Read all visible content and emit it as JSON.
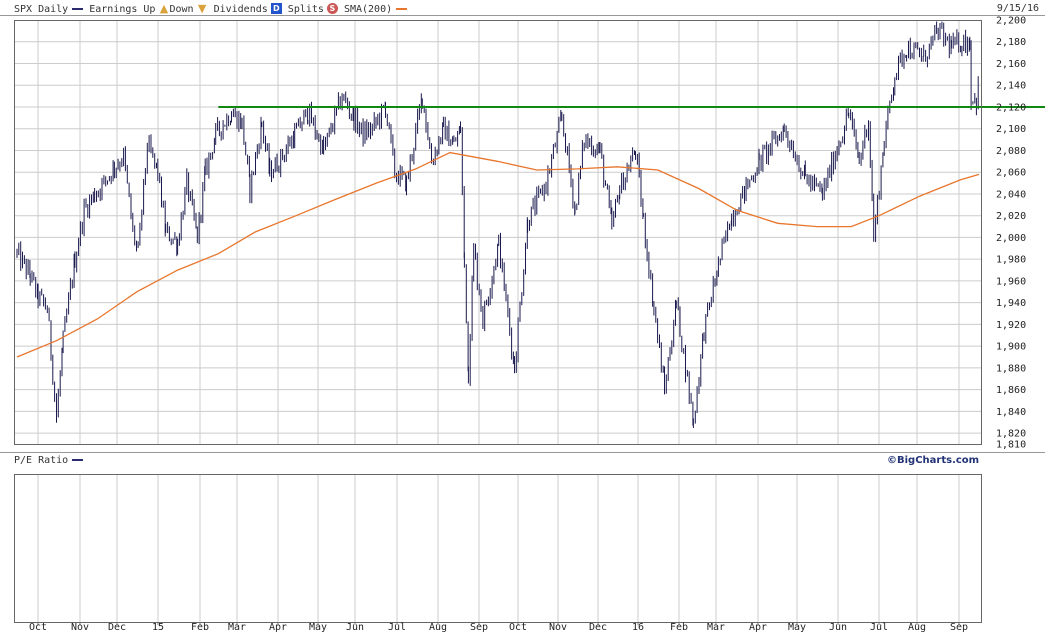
{
  "header": {
    "symbol_label": "SPX Daily",
    "earnings_label": "Earnings Up",
    "down_label": "Down",
    "dividends_label": "Dividends",
    "splits_label": "Splits",
    "sma_label": "SMA(200)",
    "date": "9/15/16",
    "earnings_icon": "warning-triangle-icon",
    "down_icon": "down-triangle-icon",
    "dividend_icon": "d-square-icon",
    "split_icon": "s-circle-icon"
  },
  "lower_panel": {
    "label": "P/E Ratio",
    "credit": "©BigCharts.com"
  },
  "colors": {
    "price": "#1a1a4e",
    "sma": "#e8762c",
    "support": "#118811",
    "grid": "#cccccc",
    "earnings_icon": "#d9a23a",
    "dividend_icon": "#2255cc",
    "split_icon": "#cc5555"
  },
  "chart_data": [
    {
      "type": "line",
      "title": "SPX Daily",
      "x_tick_labels": [
        "Oct",
        "Nov",
        "Dec",
        "15",
        "Feb",
        "Mar",
        "Apr",
        "May",
        "Jun",
        "Jul",
        "Aug",
        "Sep",
        "Oct",
        "Nov",
        "Dec",
        "16",
        "Feb",
        "Mar",
        "Apr",
        "May",
        "Jun",
        "Jul",
        "Aug",
        "Sep"
      ],
      "y_tick_labels": [
        "2,200",
        "2,180",
        "2,160",
        "2,140",
        "2,120",
        "2,100",
        "2,080",
        "2,060",
        "2,040",
        "2,020",
        "2,000",
        "1,980",
        "1,960",
        "1,940",
        "1,920",
        "1,900",
        "1,880",
        "1,860",
        "1,840",
        "1,820",
        "1,810"
      ],
      "ylim": [
        1810,
        2200
      ],
      "y_axis_side": "right",
      "grid": true,
      "x_range": [
        "2014-09-15",
        "2016-09-15"
      ],
      "series": [
        {
          "name": "SPX Daily",
          "style": "ohlc-bars",
          "points": [
            [
              "2014-09-15",
              1985
            ],
            [
              "2014-09-25",
              1965
            ],
            [
              "2014-10-01",
              1945
            ],
            [
              "2014-10-08",
              1935
            ],
            [
              "2014-10-15",
              1835
            ],
            [
              "2014-10-20",
              1905
            ],
            [
              "2014-10-29",
              1980
            ],
            [
              "2014-11-05",
              2025
            ],
            [
              "2014-11-13",
              2040
            ],
            [
              "2014-11-20",
              2050
            ],
            [
              "2014-11-28",
              2065
            ],
            [
              "2014-12-05",
              2075
            ],
            [
              "2014-12-12",
              2005
            ],
            [
              "2014-12-16",
              1985
            ],
            [
              "2014-12-23",
              2085
            ],
            [
              "2014-12-31",
              2060
            ],
            [
              "2015-01-06",
              2005
            ],
            [
              "2015-01-15",
              1995
            ],
            [
              "2015-01-22",
              2050
            ],
            [
              "2015-01-30",
              2000
            ],
            [
              "2015-02-05",
              2060
            ],
            [
              "2015-02-13",
              2095
            ],
            [
              "2015-02-25",
              2115
            ],
            [
              "2015-03-05",
              2105
            ],
            [
              "2015-03-11",
              2045
            ],
            [
              "2015-03-20",
              2105
            ],
            [
              "2015-03-26",
              2060
            ],
            [
              "2015-04-02",
              2070
            ],
            [
              "2015-04-14",
              2095
            ],
            [
              "2015-04-24",
              2115
            ],
            [
              "2015-05-06",
              2080
            ],
            [
              "2015-05-20",
              2130
            ],
            [
              "2015-05-29",
              2110
            ],
            [
              "2015-06-05",
              2095
            ],
            [
              "2015-06-12",
              2100
            ],
            [
              "2015-06-22",
              2120
            ],
            [
              "2015-06-29",
              2060
            ],
            [
              "2015-07-08",
              2050
            ],
            [
              "2015-07-20",
              2130
            ],
            [
              "2015-07-27",
              2070
            ],
            [
              "2015-08-05",
              2100
            ],
            [
              "2015-08-13",
              2085
            ],
            [
              "2015-08-18",
              2100
            ],
            [
              "2015-08-21",
              1975
            ],
            [
              "2015-08-24",
              1875
            ],
            [
              "2015-08-28",
              1990
            ],
            [
              "2015-09-04",
              1925
            ],
            [
              "2015-09-16",
              1995
            ],
            [
              "2015-09-28",
              1880
            ],
            [
              "2015-10-08",
              2015
            ],
            [
              "2015-10-22",
              2050
            ],
            [
              "2015-11-03",
              2110
            ],
            [
              "2015-11-13",
              2025
            ],
            [
              "2015-11-20",
              2090
            ],
            [
              "2015-12-02",
              2080
            ],
            [
              "2015-12-11",
              2010
            ],
            [
              "2015-12-17",
              2045
            ],
            [
              "2015-12-29",
              2080
            ],
            [
              "2016-01-04",
              2015
            ],
            [
              "2016-01-12",
              1935
            ],
            [
              "2016-01-20",
              1860
            ],
            [
              "2016-01-29",
              1940
            ],
            [
              "2016-02-11",
              1830
            ],
            [
              "2016-02-19",
              1915
            ],
            [
              "2016-03-01",
              1975
            ],
            [
              "2016-03-11",
              2020
            ],
            [
              "2016-03-22",
              2045
            ],
            [
              "2016-04-01",
              2070
            ],
            [
              "2016-04-20",
              2100
            ],
            [
              "2016-05-06",
              2055
            ],
            [
              "2016-05-19",
              2040
            ],
            [
              "2016-06-08",
              2115
            ],
            [
              "2016-06-16",
              2070
            ],
            [
              "2016-06-23",
              2110
            ],
            [
              "2016-06-27",
              2000
            ],
            [
              "2016-07-05",
              2090
            ],
            [
              "2016-07-13",
              2150
            ],
            [
              "2016-07-22",
              2175
            ],
            [
              "2016-08-04",
              2165
            ],
            [
              "2016-08-15",
              2190
            ],
            [
              "2016-08-25",
              2175
            ],
            [
              "2016-09-02",
              2180
            ],
            [
              "2016-09-08",
              2180
            ],
            [
              "2016-09-09",
              2130
            ],
            [
              "2016-09-13",
              2125
            ],
            [
              "2016-09-15",
              2145
            ]
          ]
        },
        {
          "name": "SMA(200)",
          "style": "line",
          "points": [
            [
              "2014-09-15",
              1890
            ],
            [
              "2014-10-15",
              1905
            ],
            [
              "2014-11-15",
              1925
            ],
            [
              "2014-12-15",
              1950
            ],
            [
              "2015-01-15",
              1970
            ],
            [
              "2015-02-15",
              1985
            ],
            [
              "2015-03-15",
              2005
            ],
            [
              "2015-04-15",
              2020
            ],
            [
              "2015-05-15",
              2035
            ],
            [
              "2015-06-15",
              2050
            ],
            [
              "2015-07-15",
              2063
            ],
            [
              "2015-08-10",
              2078
            ],
            [
              "2015-09-15",
              2070
            ],
            [
              "2015-10-15",
              2062
            ],
            [
              "2015-11-15",
              2063
            ],
            [
              "2015-12-15",
              2065
            ],
            [
              "2016-01-15",
              2062
            ],
            [
              "2016-02-15",
              2045
            ],
            [
              "2016-03-15",
              2025
            ],
            [
              "2016-04-15",
              2013
            ],
            [
              "2016-05-15",
              2010
            ],
            [
              "2016-06-10",
              2010
            ],
            [
              "2016-07-01",
              2020
            ],
            [
              "2016-08-01",
              2038
            ],
            [
              "2016-09-01",
              2053
            ],
            [
              "2016-09-15",
              2058
            ]
          ]
        }
      ],
      "annotations": [
        {
          "type": "horizontal-line",
          "y": 2120,
          "from": "2015-02-15",
          "to": "2016-09-30"
        }
      ]
    },
    {
      "type": "line",
      "title": "P/E Ratio",
      "x_tick_labels": [
        "Oct",
        "Nov",
        "Dec",
        "15",
        "Feb",
        "Mar",
        "Apr",
        "May",
        "Jun",
        "Jul",
        "Aug",
        "Sep",
        "Oct",
        "Nov",
        "Dec",
        "16",
        "Feb",
        "Mar",
        "Apr",
        "May",
        "Jun",
        "Jul",
        "Aug",
        "Sep"
      ],
      "grid": true,
      "series": []
    }
  ]
}
